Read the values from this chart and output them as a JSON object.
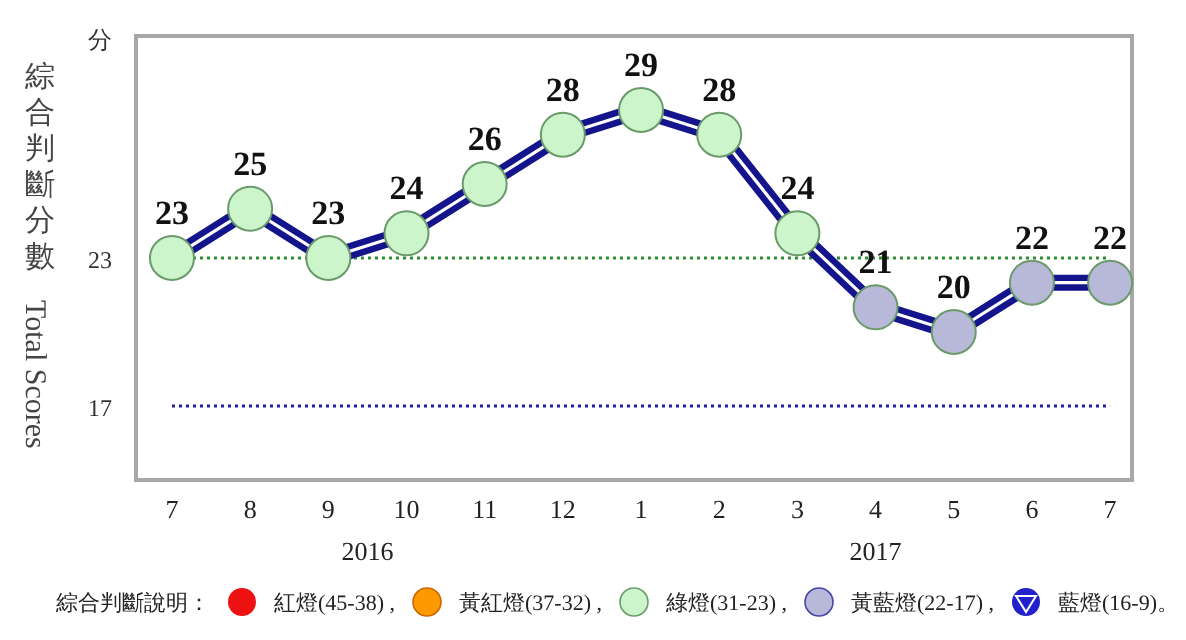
{
  "chart_data": {
    "type": "line",
    "ylabel": "綜合判斷分數 Total Scores",
    "categories": [
      "7",
      "8",
      "9",
      "10",
      "11",
      "12",
      "1",
      "2",
      "3",
      "4",
      "5",
      "6",
      "7"
    ],
    "values": [
      23,
      25,
      23,
      24,
      26,
      28,
      29,
      28,
      24,
      21,
      20,
      22,
      22
    ],
    "color": "#14148c",
    "colors": [
      "#ccf5cc",
      "#ccf5cc",
      "#ccf5cc",
      "#ccf5cc",
      "#ccf5cc",
      "#ccf5cc",
      "#ccf5cc",
      "#ccf5cc",
      "#ccf5cc",
      "#b8b8d8",
      "#b8b8d8",
      "#b8b8d8",
      "#b8b8d8"
    ],
    "marker": "circle",
    "data_labels": true,
    "ylim": [
      14,
      32
    ],
    "yticks": [
      {
        "value": 32,
        "label": "分"
      },
      23,
      17
    ],
    "ref_lines": [
      {
        "axis": "y",
        "value": 23,
        "color": "#2e8b2e",
        "line_style": "dotted"
      },
      {
        "axis": "y",
        "value": 17,
        "color": "#2020a0",
        "line_style": "dotted"
      }
    ],
    "annotations": [
      "2016",
      "2017",
      "綜合判斷說明：",
      "紅燈(45-38) ,",
      "黃紅燈(37-32) ,",
      "綠燈(31-23) ,",
      "黃藍燈(22-17) ,",
      "藍燈(16-9)。"
    ]
  }
}
